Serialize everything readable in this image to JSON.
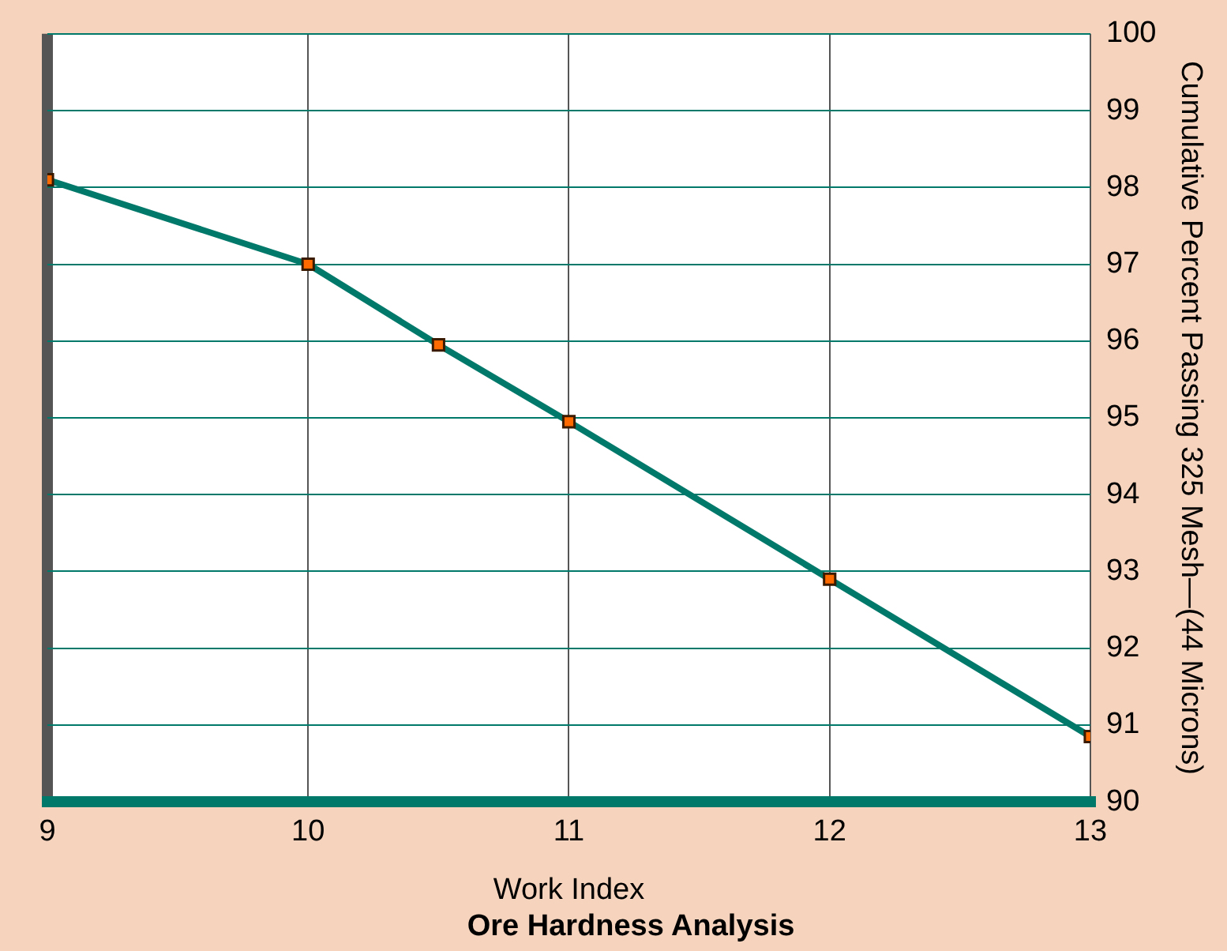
{
  "chart_data": {
    "type": "line",
    "title": "Ore Hardness Analysis",
    "xlabel": "Work Index",
    "ylabel": "Cumulative Percent Passing 325 Mesh—(44 Microns)",
    "series": [
      {
        "color": "#00786a",
        "x": [
          9,
          10,
          10.5,
          11,
          12,
          13
        ],
        "values": [
          98.1,
          97.0,
          95.95,
          94.95,
          92.9,
          90.85
        ]
      }
    ],
    "xlim": [
      9,
      13
    ],
    "xticks": [
      9,
      10,
      11,
      12,
      13
    ],
    "ylim": [
      90,
      100
    ],
    "yticks": [
      90,
      91,
      92,
      93,
      94,
      95,
      96,
      97,
      98,
      99,
      100
    ],
    "grid": true,
    "marker": "square",
    "line_style": "solid"
  }
}
